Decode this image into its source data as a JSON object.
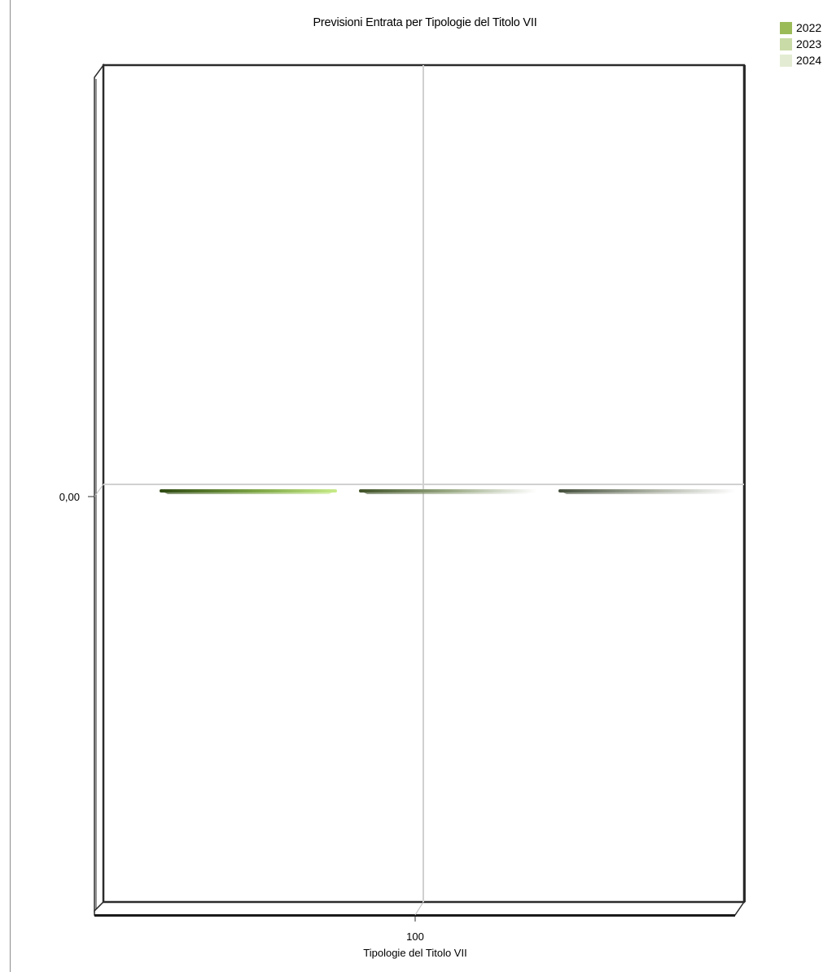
{
  "chart_data": {
    "type": "bar",
    "title": "Previsioni Entrata per Tipologie del Titolo VII",
    "xlabel": "Tipologie del Titolo VII",
    "ylabel": "",
    "categories": [
      "100"
    ],
    "y_ticks": [
      "0,00"
    ],
    "series": [
      {
        "name": "2022",
        "values": [
          0
        ],
        "color": "#9bbb59"
      },
      {
        "name": "2023",
        "values": [
          0
        ],
        "color": "#c9dba6"
      },
      {
        "name": "2024",
        "values": [
          0
        ],
        "color": "#e3ecd3"
      }
    ],
    "legend_position": "top-right",
    "grid": true,
    "style": "3d"
  }
}
